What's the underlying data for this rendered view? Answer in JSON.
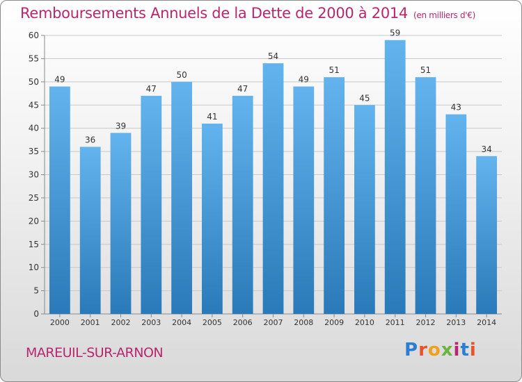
{
  "header": {
    "title": "Remboursements Annuels de la Dette de 2000 à 2014",
    "subtitle": "(en milliers d'€)"
  },
  "footer": {
    "city": "MAREUIL-SUR-ARNON",
    "logo_letters": [
      "P",
      "r",
      "o",
      "x",
      "i",
      "t",
      "i"
    ],
    "logo_colors": [
      "#2a7fd4",
      "#e8532b",
      "#f0a11b",
      "#6cb33f",
      "#b8266d",
      "#2a7fd4",
      "#e8532b"
    ]
  },
  "colors": {
    "title": "#b8266d",
    "bar_top": "#63b3ee",
    "bar_bottom": "#2a7ab9",
    "grid": "#c8c8c8"
  },
  "chart_data": {
    "type": "bar",
    "title": "Remboursements Annuels de la Dette de 2000 à 2014",
    "subtitle": "(en milliers d'€)",
    "xlabel": "",
    "ylabel": "",
    "categories": [
      "2000",
      "2001",
      "2002",
      "2003",
      "2004",
      "2005",
      "2006",
      "2007",
      "2008",
      "2009",
      "2010",
      "2011",
      "2012",
      "2013",
      "2014"
    ],
    "values": [
      49,
      36,
      39,
      47,
      50,
      41,
      47,
      54,
      49,
      51,
      45,
      59,
      51,
      43,
      34
    ],
    "ylim": [
      0,
      60
    ],
    "yticks": [
      0,
      5,
      10,
      15,
      20,
      25,
      30,
      35,
      40,
      45,
      50,
      55,
      60
    ],
    "grid": true,
    "legend": "none"
  }
}
